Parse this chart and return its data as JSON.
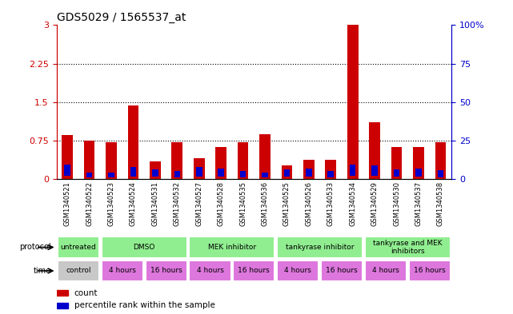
{
  "title": "GDS5029 / 1565537_at",
  "samples": [
    "GSM1340521",
    "GSM1340522",
    "GSM1340523",
    "GSM1340524",
    "GSM1340531",
    "GSM1340532",
    "GSM1340527",
    "GSM1340528",
    "GSM1340535",
    "GSM1340536",
    "GSM1340525",
    "GSM1340526",
    "GSM1340533",
    "GSM1340534",
    "GSM1340529",
    "GSM1340530",
    "GSM1340537",
    "GSM1340538"
  ],
  "red_values": [
    0.85,
    0.75,
    0.72,
    1.43,
    0.35,
    0.72,
    0.4,
    0.62,
    0.72,
    0.88,
    0.27,
    0.38,
    0.38,
    3.0,
    1.1,
    0.62,
    0.62,
    0.72
  ],
  "blue_values": [
    0.22,
    0.1,
    0.1,
    0.18,
    0.14,
    0.12,
    0.18,
    0.15,
    0.12,
    0.1,
    0.14,
    0.16,
    0.12,
    0.22,
    0.2,
    0.14,
    0.15,
    0.13
  ],
  "ylim_left": [
    0,
    3.0
  ],
  "ylim_right": [
    0,
    100
  ],
  "yticks_left": [
    0,
    0.75,
    1.5,
    2.25,
    3.0
  ],
  "yticks_right": [
    0,
    25,
    50,
    75,
    100
  ],
  "ytick_labels_left": [
    "0",
    "0.75",
    "1.5",
    "2.25",
    "3"
  ],
  "ytick_labels_right": [
    "0",
    "25",
    "50",
    "75",
    "100%"
  ],
  "bar_width": 0.5,
  "red_color": "#CC0000",
  "blue_color": "#0000CC",
  "protocol_bg": "#90EE90",
  "time_bg_ctrl": "#c8c8c8",
  "time_bg_hours": "#DD77DD",
  "grid_color": "black",
  "xlabel_color_left": "#CC0000",
  "xlabel_color_right": "#0000CC",
  "protocol_groups": [
    [
      0,
      2,
      "untreated"
    ],
    [
      2,
      6,
      "DMSO"
    ],
    [
      6,
      10,
      "MEK inhibitor"
    ],
    [
      10,
      14,
      "tankyrase inhibitor"
    ],
    [
      14,
      18,
      "tankyrase and MEK\ninhibitors"
    ]
  ],
  "time_groups": [
    [
      0,
      2,
      "control",
      "#c8c8c8"
    ],
    [
      2,
      4,
      "4 hours",
      "#DD77DD"
    ],
    [
      4,
      6,
      "16 hours",
      "#DD77DD"
    ],
    [
      6,
      8,
      "4 hours",
      "#DD77DD"
    ],
    [
      8,
      10,
      "16 hours",
      "#DD77DD"
    ],
    [
      10,
      12,
      "4 hours",
      "#DD77DD"
    ],
    [
      12,
      14,
      "16 hours",
      "#DD77DD"
    ],
    [
      14,
      16,
      "4 hours",
      "#DD77DD"
    ],
    [
      16,
      18,
      "16 hours",
      "#DD77DD"
    ]
  ]
}
